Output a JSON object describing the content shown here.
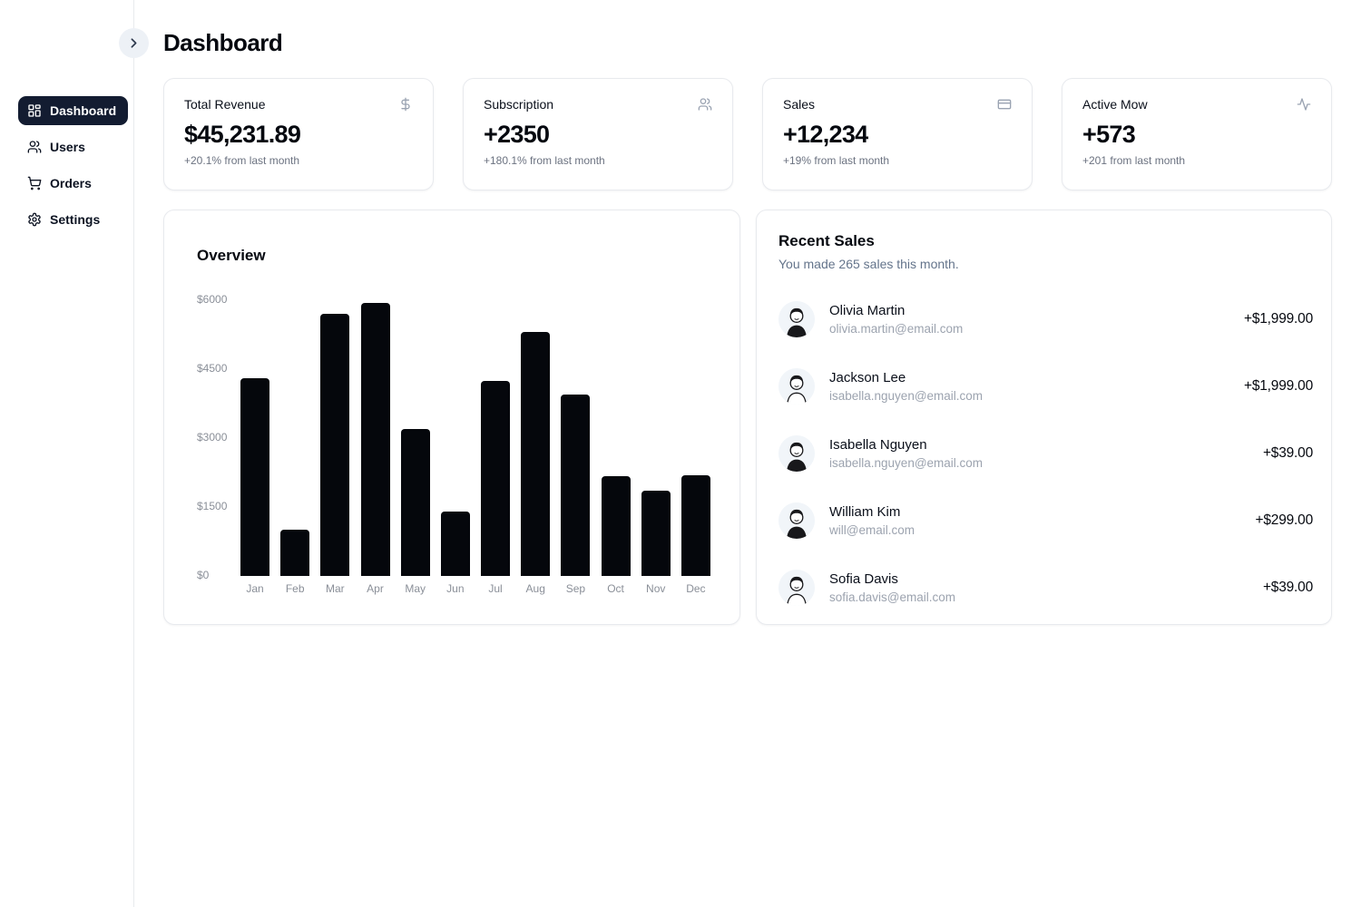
{
  "header": {
    "title": "Dashboard",
    "collapse_icon": "chevron-right-icon"
  },
  "sidebar": {
    "items": [
      {
        "label": "Dashboard",
        "icon": "dashboard-grid-icon",
        "active": true
      },
      {
        "label": "Users",
        "icon": "users-icon",
        "active": false
      },
      {
        "label": "Orders",
        "icon": "shopping-cart-icon",
        "active": false
      },
      {
        "label": "Settings",
        "icon": "gear-icon",
        "active": false
      }
    ]
  },
  "stats": [
    {
      "title": "Total Revenue",
      "value": "$45,231.89",
      "change": "+20.1% from last month",
      "icon": "dollar-icon"
    },
    {
      "title": "Subscription",
      "value": "+2350",
      "change": "+180.1% from last month",
      "icon": "users-icon"
    },
    {
      "title": "Sales",
      "value": "+12,234",
      "change": "+19% from last month",
      "icon": "credit-card-icon"
    },
    {
      "title": "Active Mow",
      "value": "+573",
      "change": "+201 from last month",
      "icon": "activity-icon"
    }
  ],
  "chart_data": {
    "type": "bar",
    "title": "Overview",
    "categories": [
      "Jan",
      "Feb",
      "Mar",
      "Apr",
      "May",
      "Jun",
      "Jul",
      "Aug",
      "Sep",
      "Oct",
      "Nov",
      "Dec"
    ],
    "values": [
      4300,
      1000,
      5700,
      5950,
      3200,
      1400,
      4250,
      5300,
      3950,
      2170,
      1860,
      2200
    ],
    "yticks": [
      "$6000",
      "$4500",
      "$3000",
      "$1500",
      "$0"
    ],
    "ylim": [
      0,
      6000
    ],
    "xlabel": "",
    "ylabel": "",
    "grid": false,
    "legend": false,
    "bar_color": "#05070c"
  },
  "recent_sales": {
    "title": "Recent Sales",
    "subtitle": "You made 265 sales this month.",
    "items": [
      {
        "name": "Olivia Martin",
        "email": "olivia.martin@email.com",
        "amount": "+$1,999.00",
        "avatar_variant": "dark"
      },
      {
        "name": "Jackson Lee",
        "email": "isabella.nguyen@email.com",
        "amount": "+$1,999.00",
        "avatar_variant": "light"
      },
      {
        "name": "Isabella Nguyen",
        "email": "isabella.nguyen@email.com",
        "amount": "+$39.00",
        "avatar_variant": "dark"
      },
      {
        "name": "William Kim",
        "email": "will@email.com",
        "amount": "+$299.00",
        "avatar_variant": "dark"
      },
      {
        "name": "Sofia Davis",
        "email": "sofia.davis@email.com",
        "amount": "+$39.00",
        "avatar_variant": "light"
      }
    ]
  },
  "colors": {
    "active_nav_bg": "#131c31",
    "bar": "#05070c",
    "muted_text": "#6b7280",
    "faint_text": "#9ca3af",
    "card_border": "#e8eaee",
    "avatar_bg": "#f1f5f9",
    "collapse_btn_bg": "#edf1f6"
  }
}
